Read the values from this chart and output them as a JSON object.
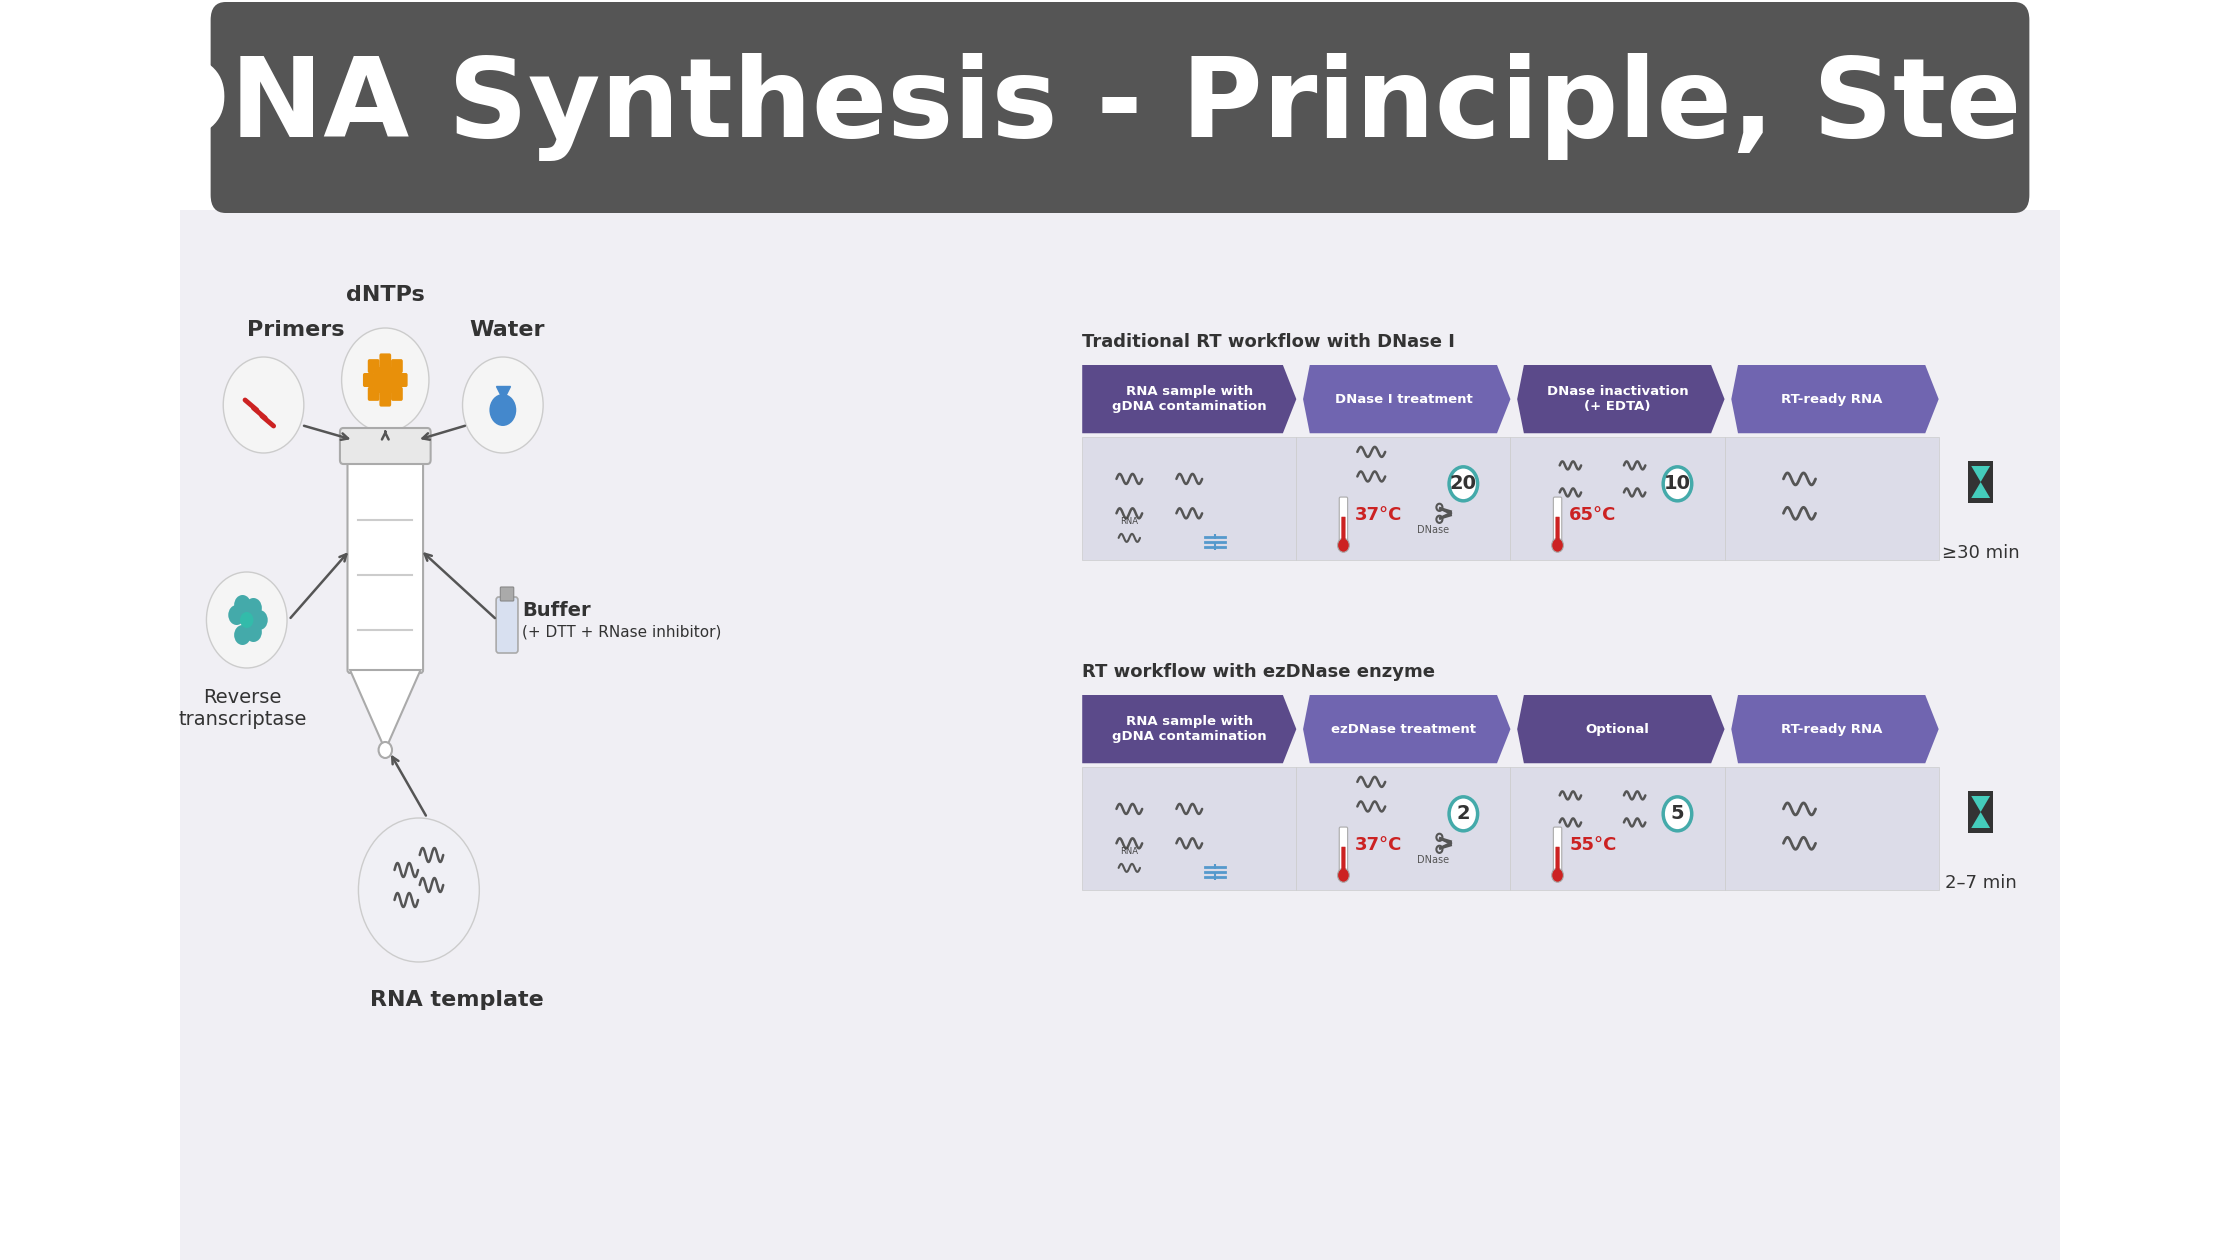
{
  "title": "cDNA Synthesis - Principle, Steps",
  "title_bg": "#555555",
  "title_color": "#ffffff",
  "bg_color": "#ffffff",
  "content_bg": "#f0eff4",
  "workflow1_title": "Traditional RT workflow with DNase I",
  "workflow2_title": "RT workflow with ezDNase enzyme",
  "workflow1_steps": [
    "RNA sample with\ngDNA contamination",
    "DNase I treatment",
    "DNase inactivation\n(+ EDTA)",
    "RT-ready RNA"
  ],
  "workflow2_steps": [
    "RNA sample with\ngDNA contamination",
    "ezDNase treatment",
    "Optional",
    "RT-ready RNA"
  ],
  "workflow1_temps": [
    "37°C",
    "65°C"
  ],
  "workflow2_temps": [
    "37°C",
    "55°C"
  ],
  "workflow1_times": [
    "20",
    "10"
  ],
  "workflow2_times": [
    "2",
    "5"
  ],
  "time1_label": "≥30 min",
  "time2_label": "2–7 min",
  "purple_dark": "#5b4a8a",
  "purple_mid": "#7065b0",
  "purple_light": "#8878c0",
  "step_bg": "#dcdce8",
  "arrow_color": "#7065b0",
  "temp_red": "#cc2222",
  "circle_teal": "#44aaaa",
  "hourglass_teal": "#44ccbb",
  "hourglass_dark": "#333333",
  "icon_grey": "#888888",
  "icon_dark": "#555555",
  "dna_blue": "#5599cc",
  "dntps_orange": "#e8900a"
}
